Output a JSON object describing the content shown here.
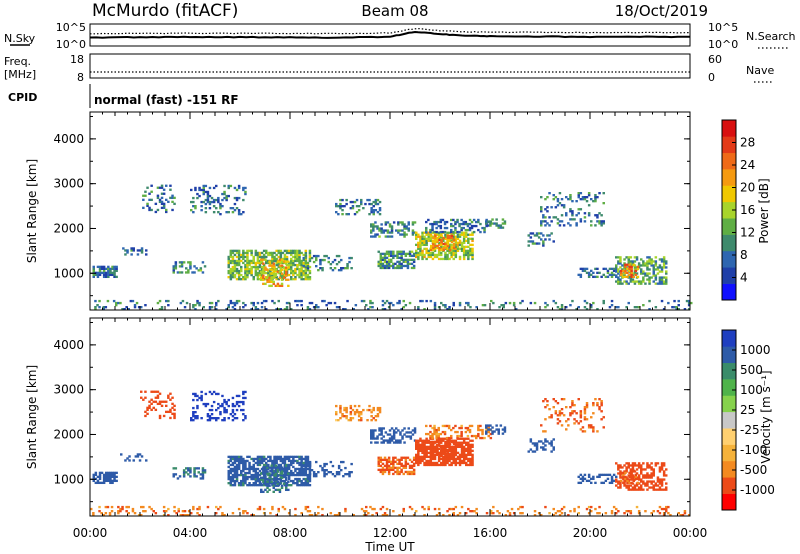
{
  "header": {
    "station": "McMurdo (fitACF)",
    "beam": "Beam 08",
    "date": "18/Oct/2019"
  },
  "noise_panel": {
    "left_label": "N.Sky",
    "right_label": "N.Search",
    "ticks_left": [
      "10^5",
      "10^0"
    ],
    "ticks_right": [
      "10^5",
      "10^0"
    ]
  },
  "freq_panel": {
    "left_label_line1": "Freq.",
    "left_label_line2": "[MHz]",
    "right_label": "Nave",
    "ticks_left": [
      "18",
      "8"
    ],
    "ticks_right": [
      "60",
      "0"
    ]
  },
  "cpid_panel": {
    "label": "CPID",
    "text": "normal (fast) -151 RF"
  },
  "time_axis": {
    "label": "Time UT",
    "ticks": [
      "00:00",
      "04:00",
      "08:00",
      "12:00",
      "16:00",
      "20:00",
      "00:00"
    ]
  },
  "colors": {
    "power_scale": [
      "#1010ff",
      "#1f3fa8",
      "#2e66b0",
      "#3e8a6c",
      "#5fae44",
      "#a8d42b",
      "#f0c800",
      "#f59a10",
      "#ef6a18",
      "#e33a18",
      "#d80f10"
    ],
    "velocity_scale": [
      "#ff0000",
      "#ec4a18",
      "#f38a20",
      "#f5b23a",
      "#ffd070",
      "#c8c8c8",
      "#86d24c",
      "#4fb34a",
      "#3a8c6a",
      "#2e5ba8",
      "#1f3fc0"
    ]
  },
  "chart_data": [
    {
      "type": "heatmap",
      "panel": "power",
      "ylabel": "Slant Range [km]",
      "ylim": [
        180,
        4600
      ],
      "yticks": [
        "1000",
        "2000",
        "3000",
        "4000"
      ],
      "xlim_hours": [
        0,
        24
      ],
      "colorbar_label": "Power [dB]",
      "colorbar_ticks": [
        "4",
        "8",
        "12",
        "16",
        "20",
        "24",
        "28"
      ],
      "colorbar_range": [
        0,
        32
      ],
      "patches": [
        {
          "t": [
            0.1,
            1.1
          ],
          "r": [
            900,
            1150
          ],
          "v": 8,
          "d": 0.75
        },
        {
          "t": [
            1.2,
            2.2
          ],
          "r": [
            1400,
            1550
          ],
          "v": 8,
          "d": 0.35
        },
        {
          "t": [
            2.0,
            3.4
          ],
          "r": [
            2350,
            2950
          ],
          "v": 8,
          "d": 0.25
        },
        {
          "t": [
            3.3,
            4.6
          ],
          "r": [
            1000,
            1250
          ],
          "v": 10,
          "d": 0.4
        },
        {
          "t": [
            4.0,
            6.2
          ],
          "r": [
            2300,
            2950
          ],
          "v": 8,
          "d": 0.25
        },
        {
          "t": [
            5.5,
            8.8
          ],
          "r": [
            850,
            1500
          ],
          "v": 14,
          "d": 0.7
        },
        {
          "t": [
            6.8,
            7.9
          ],
          "r": [
            700,
            1300
          ],
          "v": 20,
          "d": 0.4
        },
        {
          "t": [
            8.5,
            10.5
          ],
          "r": [
            1050,
            1400
          ],
          "v": 8,
          "d": 0.3
        },
        {
          "t": [
            9.8,
            11.6
          ],
          "r": [
            2300,
            2650
          ],
          "v": 8,
          "d": 0.3
        },
        {
          "t": [
            11.5,
            13.0
          ],
          "r": [
            1100,
            1500
          ],
          "v": 10,
          "d": 0.65
        },
        {
          "t": [
            11.2,
            13.0
          ],
          "r": [
            1800,
            2150
          ],
          "v": 10,
          "d": 0.45
        },
        {
          "t": [
            13.0,
            15.3
          ],
          "r": [
            1300,
            1900
          ],
          "v": 16,
          "d": 0.7
        },
        {
          "t": [
            13.6,
            14.6
          ],
          "r": [
            1500,
            1850
          ],
          "v": 22,
          "d": 0.45
        },
        {
          "t": [
            13.4,
            16.0
          ],
          "r": [
            1900,
            2200
          ],
          "v": 8,
          "d": 0.4
        },
        {
          "t": [
            15.8,
            16.6
          ],
          "r": [
            2000,
            2200
          ],
          "v": 10,
          "d": 0.5
        },
        {
          "t": [
            17.5,
            18.5
          ],
          "r": [
            1600,
            1900
          ],
          "v": 8,
          "d": 0.35
        },
        {
          "t": [
            18.0,
            20.5
          ],
          "r": [
            2050,
            2800
          ],
          "v": 8,
          "d": 0.2
        },
        {
          "t": [
            19.5,
            21.0
          ],
          "r": [
            900,
            1100
          ],
          "v": 8,
          "d": 0.4
        },
        {
          "t": [
            21.0,
            23.0
          ],
          "r": [
            750,
            1350
          ],
          "v": 12,
          "d": 0.55
        },
        {
          "t": [
            21.2,
            21.9
          ],
          "r": [
            900,
            1200
          ],
          "v": 24,
          "d": 0.5
        },
        {
          "t": [
            0.0,
            24.0
          ],
          "r": [
            180,
            380
          ],
          "v": 8,
          "d": 0.18
        }
      ]
    },
    {
      "type": "heatmap",
      "panel": "velocity",
      "ylabel": "Slant Range [km]",
      "ylim": [
        180,
        4600
      ],
      "yticks": [
        "1000",
        "2000",
        "3000",
        "4000"
      ],
      "xlim_hours": [
        0,
        24
      ],
      "colorbar_label": "Velocity [m s⁻¹]",
      "colorbar_ticks": [
        "-1000",
        "-500",
        "-100",
        "-25",
        "25",
        "100",
        "500",
        "1000"
      ],
      "colorbar_range": [
        -1500,
        1500
      ],
      "patches": [
        {
          "t": [
            0.1,
            1.1
          ],
          "r": [
            900,
            1150
          ],
          "v": 200,
          "d": 0.75
        },
        {
          "t": [
            1.2,
            2.2
          ],
          "r": [
            1400,
            1550
          ],
          "v": 200,
          "d": 0.35
        },
        {
          "t": [
            2.0,
            3.4
          ],
          "r": [
            2350,
            2950
          ],
          "v": -300,
          "d": 0.25
        },
        {
          "t": [
            3.3,
            4.6
          ],
          "r": [
            1000,
            1250
          ],
          "v": 120,
          "d": 0.4
        },
        {
          "t": [
            4.0,
            6.2
          ],
          "r": [
            2300,
            2950
          ],
          "v": 600,
          "d": 0.25
        },
        {
          "t": [
            5.5,
            8.8
          ],
          "r": [
            850,
            1500
          ],
          "v": 150,
          "d": 0.7
        },
        {
          "t": [
            6.8,
            7.9
          ],
          "r": [
            700,
            1300
          ],
          "v": 120,
          "d": 0.4
        },
        {
          "t": [
            8.5,
            10.5
          ],
          "r": [
            1050,
            1400
          ],
          "v": 200,
          "d": 0.3
        },
        {
          "t": [
            9.8,
            11.6
          ],
          "r": [
            2300,
            2650
          ],
          "v": -60,
          "d": 0.3
        },
        {
          "t": [
            11.5,
            13.0
          ],
          "r": [
            1100,
            1500
          ],
          "v": -120,
          "d": 0.65
        },
        {
          "t": [
            11.2,
            13.0
          ],
          "r": [
            1800,
            2150
          ],
          "v": 200,
          "d": 0.45
        },
        {
          "t": [
            13.0,
            15.3
          ],
          "r": [
            1300,
            1900
          ],
          "v": -200,
          "d": 0.75
        },
        {
          "t": [
            13.6,
            14.6
          ],
          "r": [
            1500,
            1850
          ],
          "v": -300,
          "d": 0.45
        },
        {
          "t": [
            13.4,
            16.0
          ],
          "r": [
            1900,
            2200
          ],
          "v": -80,
          "d": 0.4
        },
        {
          "t": [
            15.8,
            16.6
          ],
          "r": [
            2000,
            2200
          ],
          "v": 200,
          "d": 0.5
        },
        {
          "t": [
            17.5,
            18.5
          ],
          "r": [
            1600,
            1900
          ],
          "v": 200,
          "d": 0.35
        },
        {
          "t": [
            18.0,
            20.5
          ],
          "r": [
            2050,
            2800
          ],
          "v": -120,
          "d": 0.2
        },
        {
          "t": [
            19.5,
            21.0
          ],
          "r": [
            900,
            1100
          ],
          "v": 200,
          "d": 0.4
        },
        {
          "t": [
            21.0,
            23.0
          ],
          "r": [
            750,
            1350
          ],
          "v": -200,
          "d": 0.55
        },
        {
          "t": [
            21.2,
            21.9
          ],
          "r": [
            900,
            1200
          ],
          "v": -150,
          "d": 0.5
        },
        {
          "t": [
            0.0,
            24.0
          ],
          "r": [
            180,
            380
          ],
          "v": -80,
          "d": 0.18
        }
      ]
    },
    {
      "type": "line",
      "panel": "noise",
      "yscale": "log",
      "ylim": [
        1,
        100000
      ],
      "x_hours": [
        0,
        2,
        4,
        6,
        8,
        10,
        12,
        13,
        14,
        15,
        16,
        18,
        20,
        22,
        24
      ],
      "series": [
        {
          "style": "solid",
          "values": [
            60,
            80,
            90,
            80,
            70,
            60,
            100,
            2500,
            600,
            200,
            150,
            120,
            100,
            110,
            100
          ]
        },
        {
          "style": "dotted",
          "values": [
            800,
            900,
            1000,
            900,
            900,
            800,
            1200,
            20000,
            5000,
            2500,
            2000,
            1800,
            1500,
            1600,
            1500
          ]
        }
      ]
    },
    {
      "type": "line",
      "panel": "frequency",
      "ylim": [
        8,
        18
      ],
      "series": [
        {
          "style": "dotted",
          "values_constant": 10.5
        }
      ]
    }
  ]
}
